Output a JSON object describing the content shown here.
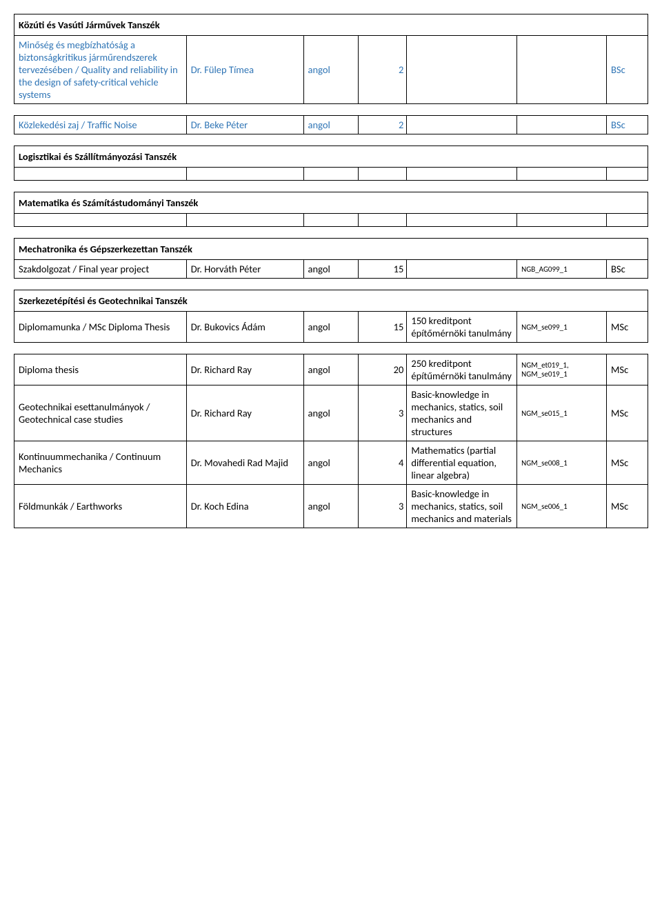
{
  "tables": [
    {
      "header": "Közúti és Vasúti Járművek Tanszék",
      "rows": [
        {
          "course": "Minőség és megbízhatóság a biztonságkritikus járműrendszerek tervezésében / Quality and reliability in the design of safety-critical vehicle systems",
          "lecturer": "Dr. Fülep Tímea",
          "lang": "angol",
          "credit": "2",
          "prereq": "",
          "code": "",
          "level": "BSc",
          "link": true
        },
        {
          "course": "Közlekedési zaj / Traffic Noise",
          "lecturer": "Dr. Beke Péter",
          "lang": "angol",
          "credit": "2",
          "prereq": "",
          "code": "",
          "level": "BSc",
          "link": true,
          "separated": true
        }
      ]
    },
    {
      "header": "Logisztikai és Szállítmányozási Tanszék",
      "rows": [
        {
          "empty": true
        }
      ]
    },
    {
      "header": "Matematika és Számítástudományi Tanszék",
      "rows": [
        {
          "empty": true
        }
      ]
    },
    {
      "header": "Mechatronika és Gépszerkezettan Tanszék",
      "rows": [
        {
          "course": "Szakdolgozat / Final year project",
          "lecturer": "Dr. Horváth Péter",
          "lang": "angol",
          "credit": "15",
          "prereq": "",
          "code": "NGB_AG099_1",
          "level": "BSc",
          "code_small": true
        }
      ]
    },
    {
      "header": "Szerkezetépítési és Geotechnikai Tanszék",
      "rows": [
        {
          "course": "Diplomamunka / MSc Diploma Thesis",
          "lecturer": "Dr. Bukovics Ádám",
          "lang": "angol",
          "credit": "15",
          "prereq": "150 kreditpont építőmérnöki tanulmány",
          "code": "NGM_se099_1",
          "level": "MSc",
          "code_small": true
        },
        {
          "course": "Diploma thesis",
          "lecturer": "Dr. Richard Ray",
          "lang": "angol",
          "credit": "20",
          "prereq": "250 kreditpont építűmérnöki tanulmány",
          "code": "NGM_et019_1, NGM_se019_1",
          "level": "MSc",
          "code_small": true,
          "separated": true
        },
        {
          "course": " Geotechnikai esettanulmányok / Geotechnical case studies",
          "lecturer": "Dr. Richard Ray",
          "lang": "angol",
          "credit": "3",
          "prereq": "Basic-knowledge in mechanics, statics, soil mechanics and structures",
          "code": "NGM_se015_1",
          "level": "MSc",
          "code_small": true
        },
        {
          "course": " Kontinuummechanika / Continuum Mechanics",
          "lecturer": "Dr. Movahedi Rad Majid",
          "lang": "angol",
          "credit": "4",
          "prereq": "Mathematics (partial differential equation, linear algebra)",
          "code": "NGM_se008_1",
          "level": "MSc",
          "code_small": true
        },
        {
          "course": "Földmunkák / Earthworks",
          "lecturer": "Dr. Koch Edina",
          "lang": "angol",
          "credit": "3",
          "prereq": "Basic-knowledge in mechanics, statics, soil mechanics and materials",
          "code": "NGM_se006_1",
          "level": "MSc",
          "code_small": true
        }
      ]
    }
  ]
}
